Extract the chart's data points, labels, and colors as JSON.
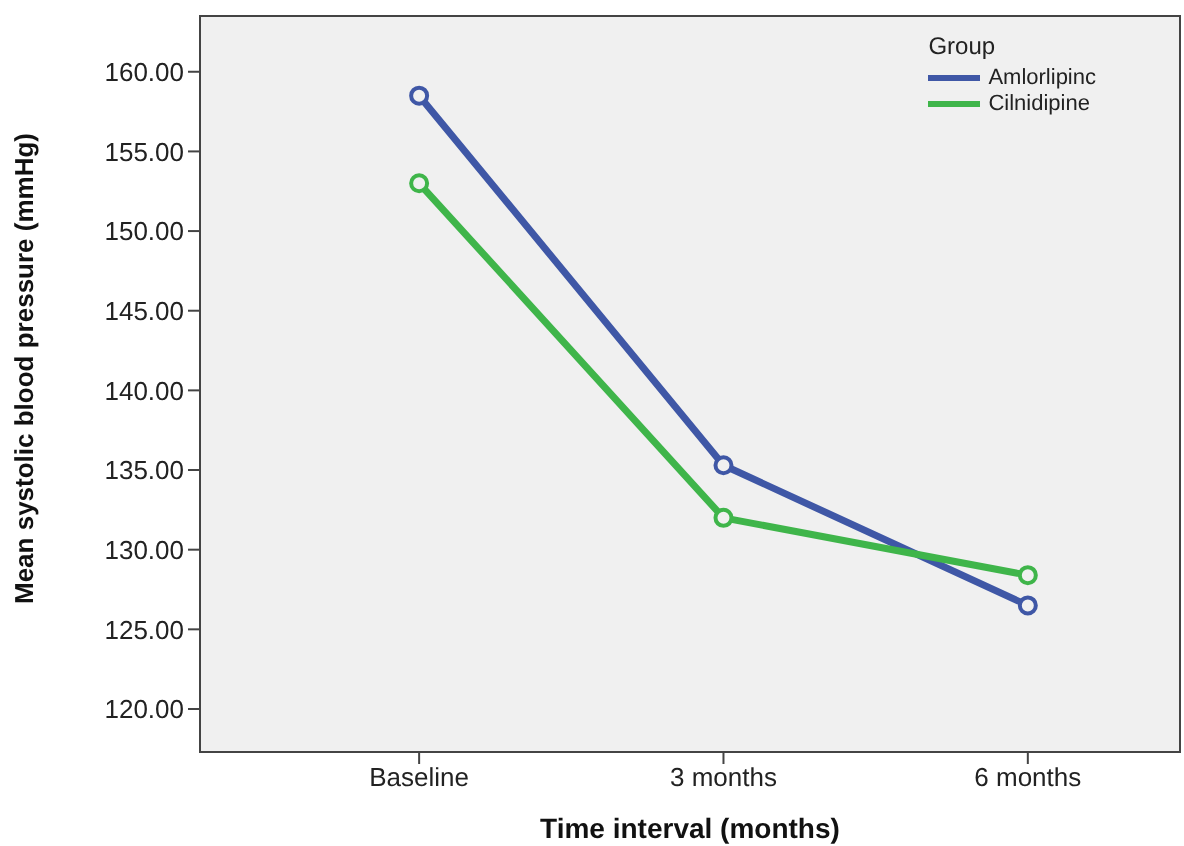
{
  "chart_data": {
    "type": "line",
    "xlabel": "Time interval (months)",
    "ylabel": "Mean systolic blood pressure (mmHg)",
    "legend_title": "Group",
    "categories": [
      "Baseline",
      "3 months",
      "6 months"
    ],
    "series": [
      {
        "name": "Amlorlipinc",
        "color": "#3f57a6",
        "values": [
          158.5,
          135.3,
          126.5
        ]
      },
      {
        "name": "Cilnidipine",
        "color": "#3fb54a",
        "values": [
          153.0,
          132.0,
          128.4
        ]
      }
    ],
    "ylim": [
      117.3,
      163.5
    ],
    "yticks": [
      {
        "value": 120,
        "label": "120.00"
      },
      {
        "value": 125,
        "label": "125.00"
      },
      {
        "value": 130,
        "label": "130.00"
      },
      {
        "value": 135,
        "label": "135.00"
      },
      {
        "value": 140,
        "label": "140.00"
      },
      {
        "value": 145,
        "label": "145.00"
      },
      {
        "value": 150,
        "label": "150.00"
      },
      {
        "value": 155,
        "label": "155.00"
      },
      {
        "value": 160,
        "label": "160.00"
      }
    ],
    "legend": "top right",
    "marker": "circle",
    "line_style": "solid"
  }
}
